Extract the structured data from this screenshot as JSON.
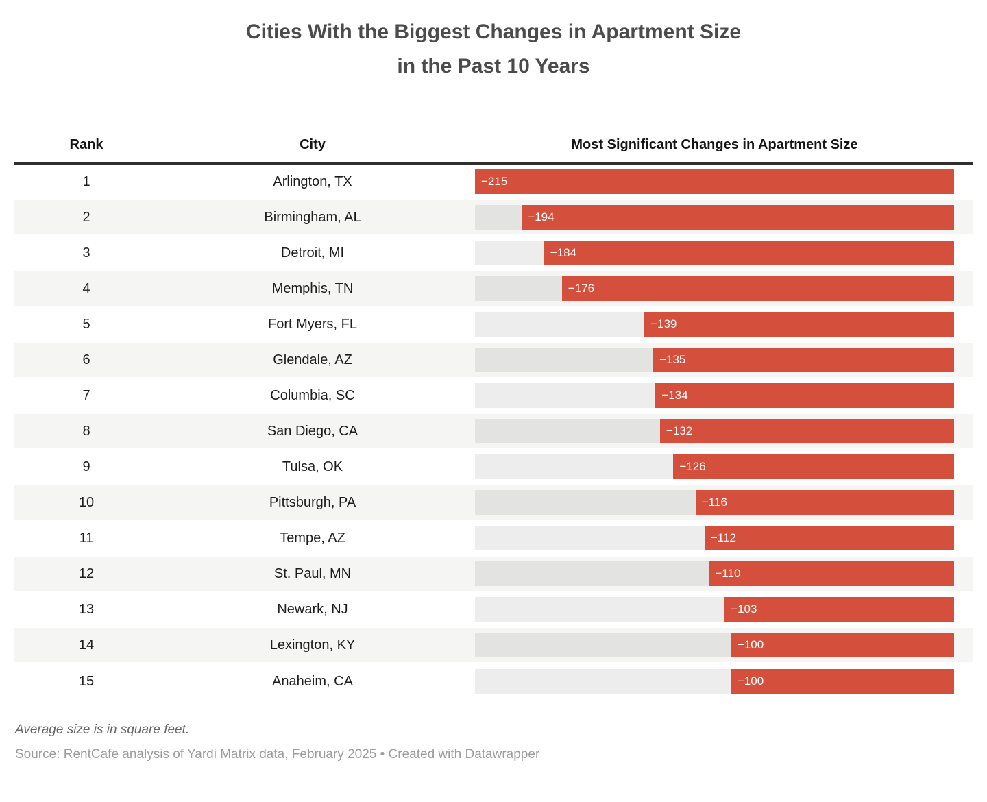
{
  "header": {
    "title_line1": "Cities With the Biggest Changes in Apartment Size",
    "title_line2": "in the Past 10 Years"
  },
  "table": {
    "columns": {
      "rank": "Rank",
      "city": "City",
      "change": "Most Significant Changes in Apartment Size"
    }
  },
  "chart_data": {
    "type": "bar",
    "orientation": "horizontal",
    "title": "Cities With the Biggest Changes in Apartment Size in the Past 10 Years",
    "column_headers": [
      "Rank",
      "City",
      "Most Significant Changes in Apartment Size"
    ],
    "ranks": [
      1,
      2,
      3,
      4,
      5,
      6,
      7,
      8,
      9,
      10,
      11,
      12,
      13,
      14,
      15
    ],
    "categories": [
      "Arlington, TX",
      "Birmingham, AL",
      "Detroit, MI",
      "Memphis, TN",
      "Fort Myers, FL",
      "Glendale, AZ",
      "Columbia, SC",
      "San Diego, CA",
      "Tulsa, OK",
      "Pittsburgh, PA",
      "Tempe, AZ",
      "St. Paul, MN",
      "Newark, NJ",
      "Lexington, KY",
      "Anaheim, CA"
    ],
    "values": [
      -215,
      -194,
      -184,
      -176,
      -139,
      -135,
      -134,
      -132,
      -126,
      -116,
      -112,
      -110,
      -103,
      -100,
      -100
    ],
    "value_labels": [
      "−215",
      "−194",
      "−184",
      "−176",
      "−139",
      "−135",
      "−134",
      "−132",
      "−126",
      "−116",
      "−112",
      "−110",
      "−103",
      "−100",
      "−100"
    ],
    "xlim": [
      -215,
      0
    ],
    "unit": "square feet",
    "bar_color": "#d5503c",
    "bars_right_aligned": true,
    "grid": false,
    "legend": "none"
  },
  "footer": {
    "notes": "Average size is in square feet.",
    "source": "Source: RentCafe analysis of Yardi Matrix data, February 2025 • Created with Datawrapper"
  }
}
